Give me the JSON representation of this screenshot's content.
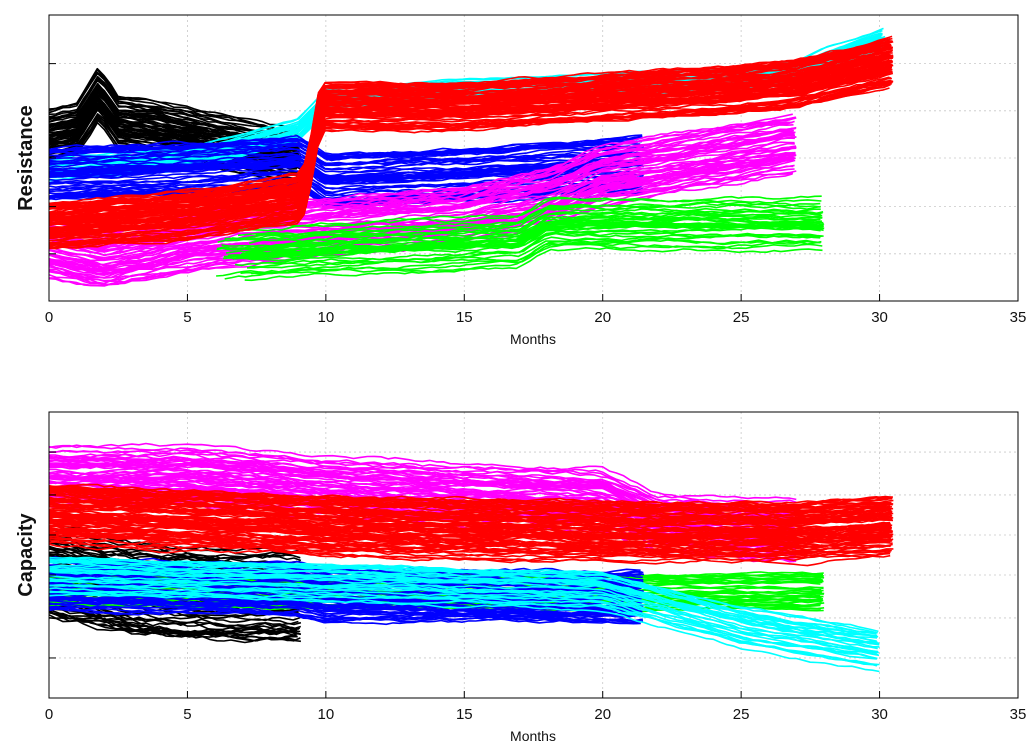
{
  "chart_data": [
    {
      "type": "line",
      "title": "",
      "xlabel": "Months",
      "ylabel": "Resistance",
      "xlim": [
        0,
        35
      ],
      "xticks": [
        0,
        5,
        10,
        15,
        20,
        25,
        30,
        35
      ],
      "ylim": [
        0,
        1
      ],
      "yticks": [
        0,
        0.165,
        0.33,
        0.5,
        0.665,
        0.83,
        1.0
      ],
      "show_ytick_labels": false,
      "grid": true,
      "series": [
        {
          "color": "#000000",
          "count": 60,
          "x_start": 0,
          "x_end": 9.1,
          "x": [
            0,
            1,
            1.8,
            2.5,
            4,
            6,
            8,
            9.1
          ],
          "y": [
            0.58,
            0.6,
            0.72,
            0.62,
            0.6,
            0.56,
            0.52,
            0.5
          ],
          "spread": 0.09
        },
        {
          "color": "#00FFFF",
          "count": 30,
          "x_start": 0,
          "x_end": 30.2,
          "x": [
            0,
            5,
            9,
            10,
            15,
            20,
            25,
            27,
            28,
            30.2
          ],
          "y": [
            0.46,
            0.5,
            0.6,
            0.7,
            0.74,
            0.76,
            0.78,
            0.8,
            0.85,
            0.92
          ],
          "spread": 0.04
        },
        {
          "color": "#0000FF",
          "count": 60,
          "x_start": 0,
          "x_end": 21.5,
          "x": [
            0,
            5,
            9,
            9.4,
            10,
            15,
            20,
            21.5
          ],
          "y": [
            0.44,
            0.46,
            0.48,
            0.46,
            0.42,
            0.44,
            0.47,
            0.48
          ],
          "spread": 0.09
        },
        {
          "color": "#FF00FF",
          "count": 55,
          "x_start": 0,
          "x_end": 27,
          "x": [
            0,
            2,
            5,
            10,
            15,
            18,
            20,
            27
          ],
          "y": [
            0.18,
            0.14,
            0.2,
            0.26,
            0.3,
            0.36,
            0.44,
            0.55
          ],
          "spread": 0.1
        },
        {
          "color": "#00FF00",
          "count": 40,
          "x_start": 6,
          "x_end": 28,
          "x": [
            6,
            10,
            15,
            17,
            18,
            28
          ],
          "y": [
            0.16,
            0.18,
            0.2,
            0.21,
            0.27,
            0.27
          ],
          "spread": 0.09
        },
        {
          "color": "#FF0000",
          "count": 90,
          "x_start": 0,
          "x_end": 30.5,
          "x": [
            0,
            5,
            9,
            9.3,
            9.8,
            15,
            20,
            25,
            27,
            30.5
          ],
          "y": [
            0.26,
            0.3,
            0.36,
            0.4,
            0.68,
            0.68,
            0.71,
            0.74,
            0.76,
            0.84
          ],
          "spread": 0.08
        }
      ]
    },
    {
      "type": "line",
      "title": "",
      "xlabel": "Months",
      "ylabel": "Capacity",
      "xlim": [
        0,
        35
      ],
      "xticks": [
        0,
        5,
        10,
        15,
        20,
        25,
        30,
        35
      ],
      "ylim": [
        0,
        1
      ],
      "yticks": [
        0,
        0.14,
        0.28,
        0.43,
        0.57,
        0.71,
        0.86,
        1.0
      ],
      "show_ytick_labels": false,
      "grid": true,
      "series": [
        {
          "color": "#000000",
          "count": 55,
          "x_start": 0,
          "x_end": 9.1,
          "x": [
            0,
            3,
            6,
            9.1
          ],
          "y": [
            0.44,
            0.38,
            0.36,
            0.36
          ],
          "spread": 0.16
        },
        {
          "color": "#00FF00",
          "count": 35,
          "x_start": 0,
          "x_end": 28,
          "x": [
            0,
            10,
            20,
            28
          ],
          "y": [
            0.38,
            0.37,
            0.37,
            0.37
          ],
          "spread": 0.06
        },
        {
          "color": "#0000FF",
          "count": 65,
          "x_start": 0,
          "x_end": 21.5,
          "x": [
            0,
            9,
            10,
            20,
            21.5
          ],
          "y": [
            0.4,
            0.38,
            0.36,
            0.35,
            0.35
          ],
          "spread": 0.09
        },
        {
          "color": "#00FFFF",
          "count": 30,
          "x_start": 0,
          "x_end": 30,
          "x": [
            0,
            10,
            20,
            25,
            30
          ],
          "y": [
            0.42,
            0.4,
            0.37,
            0.24,
            0.16
          ],
          "spread": 0.07
        },
        {
          "color": "#FF00FF",
          "count": 55,
          "x_start": 0,
          "x_end": 27,
          "x": [
            0,
            5,
            10,
            20,
            22,
            27
          ],
          "y": [
            0.78,
            0.78,
            0.74,
            0.7,
            0.62,
            0.58
          ],
          "spread": 0.11
        },
        {
          "color": "#FF0000",
          "count": 90,
          "x_start": 0,
          "x_end": 30.5,
          "x": [
            0,
            5,
            10,
            20,
            27,
            30.5
          ],
          "y": [
            0.64,
            0.62,
            0.6,
            0.58,
            0.58,
            0.6
          ],
          "spread": 0.1
        }
      ]
    }
  ]
}
